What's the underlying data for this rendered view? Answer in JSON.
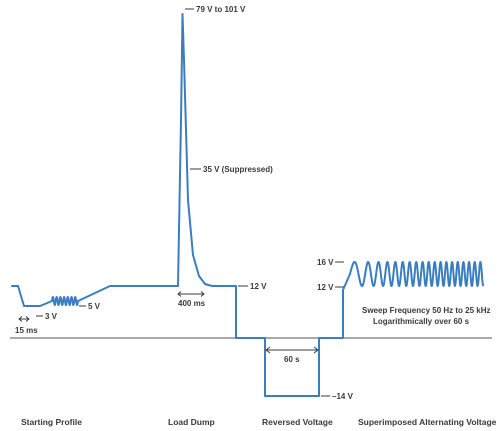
{
  "colors": {
    "waveform": "#3a7ec0",
    "text": "#3a3a3a",
    "axis": "#555555"
  },
  "annotations": {
    "peak": "79 V to 101 V",
    "suppressed": "35 V (Suppressed)",
    "twelve_v_right": "12 V",
    "five_v": "5 V",
    "three_v": "3 V",
    "fifteen_ms": "15 ms",
    "four_hundred_ms": "400 ms",
    "sixty_s": "60 s",
    "minus_fourteen_v": "–14 V",
    "sixteen_v": "16 V",
    "twelve_v_left": "12 V",
    "sweep_line1": "Sweep Frequency 50 Hz to 25 kHz",
    "sweep_line2": "Logarithmically over 60 s"
  },
  "sections": {
    "starting_profile": "Starting Profile",
    "load_dump": "Load Dump",
    "reversed_voltage": "Reversed Voltage",
    "superimposed_ac": "Superimposed Alternating Voltage"
  }
}
